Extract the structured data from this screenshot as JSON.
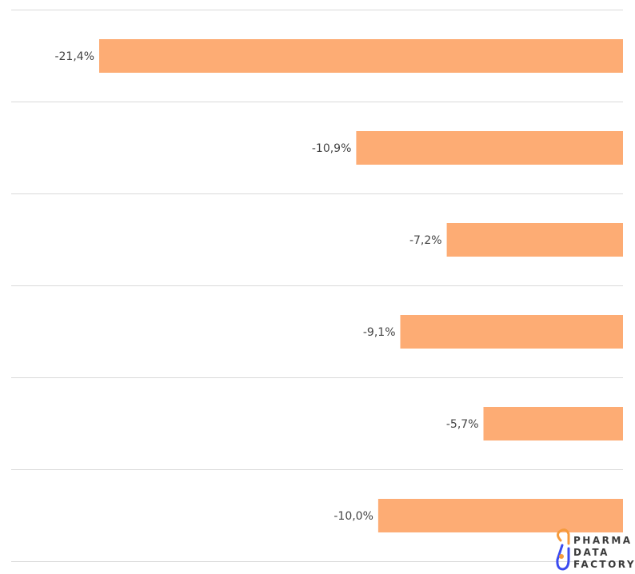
{
  "chart_data": {
    "type": "bar",
    "orientation": "horizontal",
    "values": [
      -21.4,
      -10.9,
      -7.2,
      -9.1,
      -5.7,
      -10.0
    ],
    "data_labels": [
      "-21,4%",
      "-10,9%",
      "-7,2%",
      "-9,1%",
      "-5,7%",
      "-10,0%"
    ],
    "title": "",
    "xlabel": "",
    "ylabel": "",
    "bars_extend_from": "right",
    "grid": "horizontal separators between rows",
    "colors": {
      "bar": "#FDAC74",
      "grid": "#DADADA",
      "label": "#444444"
    }
  },
  "logo": {
    "lines": [
      "PHARMA",
      "DATA",
      "FACTORY"
    ],
    "colors": {
      "orange": "#F59A3C",
      "blue": "#3B4BF0",
      "text": "#3A3A3A"
    }
  }
}
